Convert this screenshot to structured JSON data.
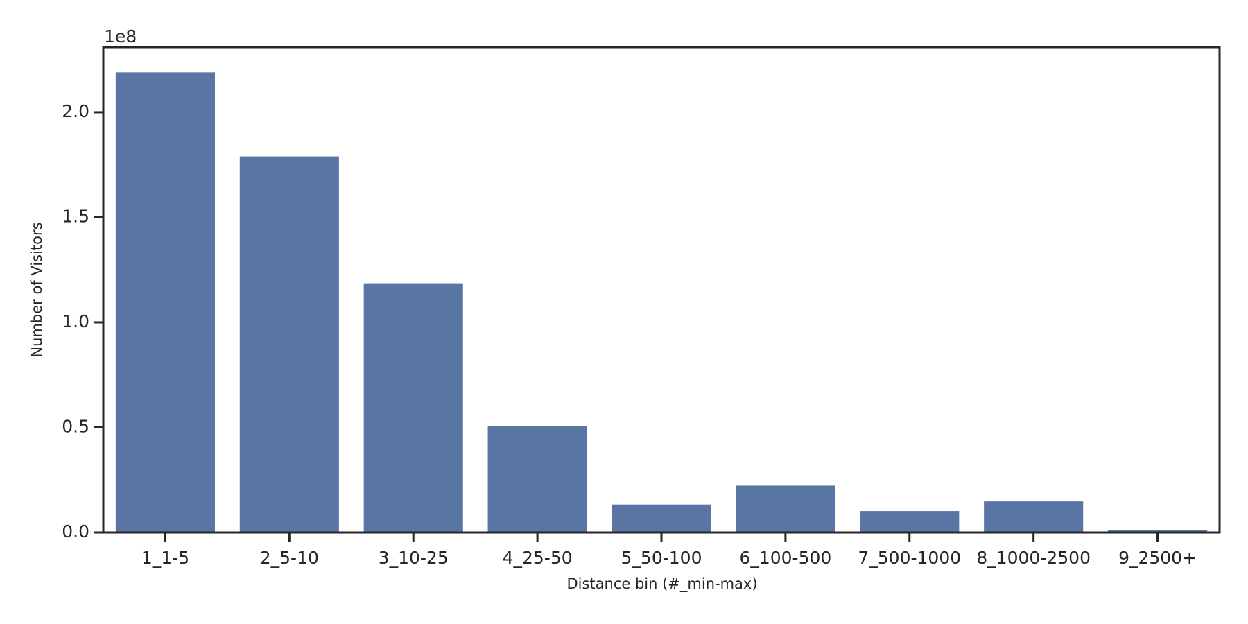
{
  "chart_data": {
    "type": "bar",
    "xlabel": "Distance bin (#_min-max)",
    "ylabel": "Number of Visitors",
    "y_offset_label": "1e8",
    "categories": [
      "1_1-5",
      "2_5-10",
      "3_10-25",
      "4_25-50",
      "5_50-100",
      "6_100-500",
      "7_500-1000",
      "8_1000-2500",
      "9_2500+"
    ],
    "values": [
      2.19,
      1.79,
      1.186,
      0.508,
      0.133,
      0.223,
      0.102,
      0.148,
      0.011
    ],
    "color": "#5975a4",
    "ylim": [
      0,
      2.31
    ],
    "yticks": [
      {
        "value": 0,
        "label": "0.0"
      },
      0.5,
      {
        "value": 1,
        "label": "1.0"
      },
      1.5,
      {
        "value": 2,
        "label": "2.0"
      }
    ],
    "grid": false
  }
}
